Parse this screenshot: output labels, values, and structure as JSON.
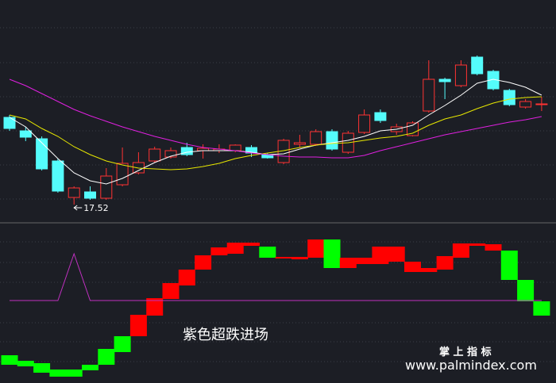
{
  "chart_data": [
    {
      "type": "candlestick",
      "open": [
        19.72,
        19.38,
        19.18,
        18.62,
        17.7,
        17.84,
        17.68,
        18.02,
        18.32,
        18.62,
        18.72,
        18.96,
        18.88,
        18.88,
        18.88,
        18.96,
        18.78,
        18.58,
        19.04,
        19.04,
        19.36,
        18.84,
        19.34,
        19.84,
        19.36,
        19.26,
        19.88,
        20.68,
        20.52,
        21.24,
        20.88,
        20.4,
        19.98,
        20.04
      ],
      "high": [
        19.78,
        19.48,
        19.24,
        18.68,
        17.98,
        17.98,
        18.44,
        18.96,
        18.84,
        18.98,
        18.96,
        19.08,
        19.04,
        19.04,
        19.04,
        19.02,
        18.82,
        19.18,
        19.28,
        19.42,
        19.42,
        19.38,
        19.92,
        19.92,
        19.56,
        19.62,
        21.16,
        20.72,
        21.16,
        21.28,
        20.92,
        20.44,
        20.18,
        20.24
      ],
      "low": [
        19.38,
        19.12,
        18.38,
        17.82,
        17.52,
        17.64,
        17.64,
        17.98,
        18.28,
        18.58,
        18.68,
        18.74,
        18.68,
        18.82,
        18.84,
        18.72,
        18.68,
        18.54,
        18.96,
        19.0,
        18.88,
        18.8,
        19.3,
        19.58,
        19.28,
        19.24,
        19.84,
        20.18,
        20.48,
        20.78,
        20.4,
        20.0,
        19.94,
        19.88
      ],
      "close": [
        19.44,
        19.22,
        18.42,
        17.86,
        17.94,
        17.68,
        18.24,
        18.56,
        18.58,
        18.92,
        18.88,
        18.78,
        18.94,
        18.92,
        19.02,
        18.82,
        18.7,
        19.14,
        19.08,
        19.36,
        18.92,
        19.32,
        19.78,
        19.64,
        19.48,
        19.58,
        20.68,
        20.62,
        21.04,
        20.82,
        20.44,
        20.04,
        20.12,
        20.06
      ],
      "up_color": "#ff3232",
      "down_color": "#54fcfc",
      "ylim": [
        17.08,
        22.68
      ],
      "lines": [
        {
          "color": "#ffffff",
          "values": [
            19.72,
            19.48,
            19.08,
            18.68,
            18.32,
            18.12,
            18.04,
            18.18,
            18.38,
            18.58,
            18.74,
            18.84,
            18.88,
            18.88,
            18.88,
            18.84,
            18.78,
            18.8,
            18.92,
            19.02,
            19.08,
            19.14,
            19.24,
            19.38,
            19.42,
            19.52,
            19.78,
            20.02,
            20.28,
            20.58,
            20.68,
            20.6,
            20.48,
            20.28
          ]
        },
        {
          "color": "#e8e800",
          "values": [
            19.78,
            19.68,
            19.44,
            19.24,
            18.98,
            18.78,
            18.62,
            18.52,
            18.44,
            18.42,
            18.4,
            18.42,
            18.48,
            18.56,
            18.68,
            18.76,
            18.82,
            18.88,
            18.96,
            19.02,
            19.06,
            19.08,
            19.14,
            19.2,
            19.24,
            19.32,
            19.52,
            19.68,
            19.78,
            19.94,
            20.08,
            20.18,
            20.22,
            20.24
          ]
        },
        {
          "color": "#e020e0",
          "values": [
            20.68,
            20.52,
            20.32,
            20.12,
            19.92,
            19.76,
            19.62,
            19.48,
            19.36,
            19.24,
            19.14,
            19.04,
            18.96,
            18.92,
            18.88,
            18.82,
            18.78,
            18.74,
            18.72,
            18.72,
            18.7,
            18.7,
            18.76,
            18.88,
            18.98,
            19.08,
            19.18,
            19.28,
            19.36,
            19.44,
            19.52,
            19.6,
            19.66,
            19.74
          ]
        }
      ],
      "low_label": 17.52
    },
    {
      "type": "step_blocks",
      "highs": [
        17.5,
        14,
        12.5,
        8.5,
        8.5,
        11.5,
        21.5,
        29.5,
        43,
        53.5,
        63,
        71.5,
        80.5,
        85.5,
        88.5,
        88.5,
        86,
        79.5,
        79.5,
        90.5,
        90.5,
        79,
        79,
        86,
        86,
        76.5,
        72.5,
        80,
        88,
        88,
        87.5,
        83.5,
        65,
        51.5
      ],
      "lows": [
        11.5,
        10.5,
        6.5,
        4,
        4,
        8,
        11.5,
        19.5,
        29.5,
        42.5,
        53,
        61.5,
        71.5,
        80.5,
        81.5,
        86.5,
        79,
        78.5,
        78,
        79,
        72.5,
        72.5,
        75,
        75,
        76.5,
        70,
        70,
        71.5,
        79,
        86.5,
        83.5,
        65,
        51.5,
        42.5
      ],
      "colors": [
        "#00ff00",
        "#00ff00",
        "#00ff00",
        "#00ff00",
        "#00ff00",
        "#00ff00",
        "#00ff00",
        "#00ff00",
        "#ff0000",
        "#ff0000",
        "#ff0000",
        "#ff0000",
        "#ff0000",
        "#ff0000",
        "#ff0000",
        "#ff0000",
        "#00ff00",
        "#ff0000",
        "#ff0000",
        "#ff0000",
        "#00ff00",
        "#ff0000",
        "#ff0000",
        "#ff0000",
        "#ff0000",
        "#ff0000",
        "#ff0000",
        "#ff0000",
        "#ff0000",
        "#ff0000",
        "#ff0000",
        "#00ff00",
        "#00ff00",
        "#00ff00"
      ],
      "ylim": [
        0,
        100
      ],
      "line": {
        "color": "#c030c0",
        "values": [
          52,
          52,
          52,
          52,
          81.5,
          52,
          52,
          52,
          52,
          52,
          52,
          52,
          52,
          52,
          52,
          52,
          52,
          52,
          52,
          52,
          52,
          52,
          52,
          52,
          52,
          52,
          52,
          52,
          52,
          52,
          52,
          52,
          52,
          52
        ]
      },
      "annotation": "紫色超跌进场"
    }
  ],
  "watermark": {
    "brand": "掌 上 指 标",
    "url": "www.palmindex.com"
  }
}
